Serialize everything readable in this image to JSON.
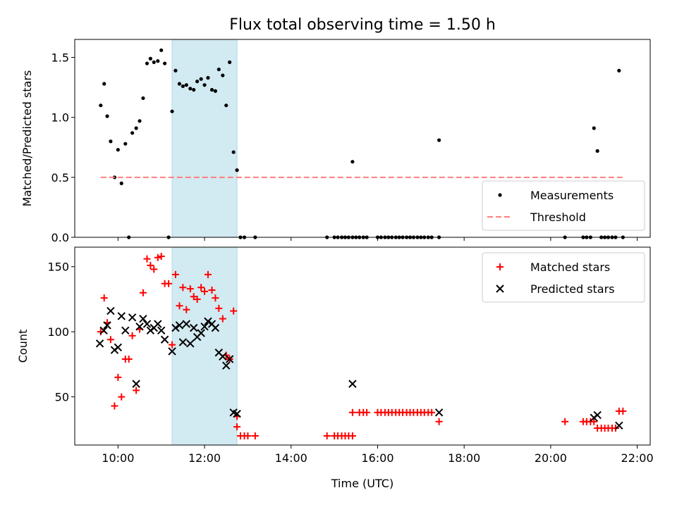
{
  "title": "Flux total observing time = 1.50 h",
  "colors": {
    "measurements": "#000000",
    "threshold": "#ff7f7f",
    "matched": "#ff0000",
    "predicted": "#000000",
    "span": "#add8e6"
  },
  "chart_data": [
    {
      "type": "scatter",
      "xlabel": "",
      "ylabel": "Matched/Predicted stars",
      "ylim": [
        0,
        1.65
      ],
      "xlim": [
        9.0,
        22.3
      ],
      "x_ticks": [
        10,
        12,
        14,
        16,
        18,
        20,
        22
      ],
      "x_tick_labels": [
        "",
        "",
        "",
        "",
        "",
        "",
        ""
      ],
      "y_ticks": [
        0,
        0.5,
        1.0,
        1.5
      ],
      "y_tick_labels": [
        "0.0",
        "0.5",
        "1.0",
        "1.5"
      ],
      "highlight_span": [
        11.25,
        12.75
      ],
      "legend_position": "bottom-right",
      "grid": false,
      "series": [
        {
          "name": "Measurements",
          "kind": "points",
          "points": [
            [
              9.6,
              1.1
            ],
            [
              9.68,
              1.28
            ],
            [
              9.75,
              1.01
            ],
            [
              9.83,
              0.8
            ],
            [
              9.92,
              0.5
            ],
            [
              10.0,
              0.73
            ],
            [
              10.08,
              0.45
            ],
            [
              10.17,
              0.78
            ],
            [
              10.25,
              0.0
            ],
            [
              10.33,
              0.87
            ],
            [
              10.42,
              0.91
            ],
            [
              10.5,
              0.97
            ],
            [
              10.58,
              1.16
            ],
            [
              10.67,
              1.45
            ],
            [
              10.75,
              1.49
            ],
            [
              10.83,
              1.46
            ],
            [
              10.92,
              1.47
            ],
            [
              11.0,
              1.56
            ],
            [
              11.08,
              1.45
            ],
            [
              11.17,
              0.0
            ],
            [
              11.25,
              1.05
            ],
            [
              11.33,
              1.39
            ],
            [
              11.42,
              1.28
            ],
            [
              11.5,
              1.26
            ],
            [
              11.58,
              1.27
            ],
            [
              11.67,
              1.24
            ],
            [
              11.75,
              1.23
            ],
            [
              11.83,
              1.3
            ],
            [
              11.92,
              1.32
            ],
            [
              12.0,
              1.27
            ],
            [
              12.08,
              1.33
            ],
            [
              12.17,
              1.23
            ],
            [
              12.25,
              1.22
            ],
            [
              12.33,
              1.4
            ],
            [
              12.42,
              1.35
            ],
            [
              12.5,
              1.1
            ],
            [
              12.58,
              1.46
            ],
            [
              12.67,
              0.71
            ],
            [
              12.75,
              0.56
            ],
            [
              12.83,
              0.0
            ],
            [
              12.92,
              0.0
            ],
            [
              13.17,
              0.0
            ],
            [
              14.83,
              0.0
            ],
            [
              15.0,
              0.0
            ],
            [
              15.08,
              0.0
            ],
            [
              15.17,
              0.0
            ],
            [
              15.25,
              0.0
            ],
            [
              15.33,
              0.0
            ],
            [
              15.42,
              0.0
            ],
            [
              15.5,
              0.0
            ],
            [
              15.58,
              0.0
            ],
            [
              15.67,
              0.0
            ],
            [
              15.75,
              0.0
            ],
            [
              15.42,
              0.63
            ],
            [
              16.0,
              0.0
            ],
            [
              16.08,
              0.0
            ],
            [
              16.17,
              0.0
            ],
            [
              16.25,
              0.0
            ],
            [
              16.33,
              0.0
            ],
            [
              16.42,
              0.0
            ],
            [
              16.5,
              0.0
            ],
            [
              16.58,
              0.0
            ],
            [
              16.67,
              0.0
            ],
            [
              16.75,
              0.0
            ],
            [
              16.83,
              0.0
            ],
            [
              16.92,
              0.0
            ],
            [
              17.0,
              0.0
            ],
            [
              17.08,
              0.0
            ],
            [
              17.17,
              0.0
            ],
            [
              17.25,
              0.0
            ],
            [
              17.42,
              0.0
            ],
            [
              17.42,
              0.81
            ],
            [
              20.33,
              0.0
            ],
            [
              20.75,
              0.0
            ],
            [
              20.83,
              0.0
            ],
            [
              20.92,
              0.0
            ],
            [
              21.0,
              0.91
            ],
            [
              21.08,
              0.72
            ],
            [
              21.17,
              0.0
            ],
            [
              21.25,
              0.0
            ],
            [
              21.33,
              0.0
            ],
            [
              21.42,
              0.0
            ],
            [
              21.5,
              0.0
            ],
            [
              21.58,
              1.39
            ],
            [
              21.67,
              0.0
            ]
          ]
        },
        {
          "name": "Threshold",
          "kind": "dashed-line",
          "x": [
            9.6,
            21.7
          ],
          "y": [
            0.5,
            0.5
          ]
        }
      ]
    },
    {
      "type": "scatter",
      "xlabel": "Time (UTC)",
      "ylabel": "Count",
      "ylim": [
        13,
        165
      ],
      "xlim": [
        9.0,
        22.3
      ],
      "x_ticks": [
        10,
        12,
        14,
        16,
        18,
        20,
        22
      ],
      "x_tick_labels": [
        "10:00",
        "12:00",
        "14:00",
        "16:00",
        "18:00",
        "20:00",
        "22:00"
      ],
      "y_ticks": [
        50,
        100,
        150
      ],
      "y_tick_labels": [
        "50",
        "100",
        "150"
      ],
      "highlight_span": [
        11.25,
        12.75
      ],
      "legend_position": "top-right",
      "grid": false,
      "series": [
        {
          "name": "Matched stars",
          "kind": "plus",
          "points": [
            [
              9.6,
              100
            ],
            [
              9.68,
              126
            ],
            [
              9.75,
              107
            ],
            [
              9.83,
              94
            ],
            [
              9.92,
              43
            ],
            [
              10.0,
              65
            ],
            [
              10.08,
              50
            ],
            [
              10.17,
              79
            ],
            [
              10.25,
              79
            ],
            [
              10.33,
              97
            ],
            [
              10.42,
              55
            ],
            [
              10.5,
              102
            ],
            [
              10.58,
              130
            ],
            [
              10.67,
              156
            ],
            [
              10.75,
              151
            ],
            [
              10.83,
              148
            ],
            [
              10.92,
              157
            ],
            [
              11.0,
              158
            ],
            [
              11.08,
              137
            ],
            [
              11.17,
              137
            ],
            [
              11.25,
              90
            ],
            [
              11.33,
              144
            ],
            [
              11.42,
              120
            ],
            [
              11.5,
              134
            ],
            [
              11.58,
              117
            ],
            [
              11.67,
              133
            ],
            [
              11.75,
              127
            ],
            [
              11.83,
              125
            ],
            [
              11.92,
              134
            ],
            [
              12.0,
              131
            ],
            [
              12.08,
              144
            ],
            [
              12.17,
              132
            ],
            [
              12.25,
              126
            ],
            [
              12.33,
              118
            ],
            [
              12.42,
              110
            ],
            [
              12.5,
              82
            ],
            [
              12.58,
              79
            ],
            [
              12.67,
              116
            ],
            [
              12.75,
              27
            ],
            [
              12.75,
              35
            ],
            [
              12.83,
              20
            ],
            [
              12.92,
              20
            ],
            [
              13.0,
              20
            ],
            [
              13.17,
              20
            ],
            [
              14.83,
              20
            ],
            [
              15.0,
              20
            ],
            [
              15.08,
              20
            ],
            [
              15.17,
              20
            ],
            [
              15.25,
              20
            ],
            [
              15.33,
              20
            ],
            [
              15.42,
              20
            ],
            [
              15.42,
              38
            ],
            [
              15.58,
              38
            ],
            [
              15.67,
              38
            ],
            [
              15.75,
              38
            ],
            [
              16.0,
              38
            ],
            [
              16.08,
              38
            ],
            [
              16.17,
              38
            ],
            [
              16.25,
              38
            ],
            [
              16.33,
              38
            ],
            [
              16.42,
              38
            ],
            [
              16.5,
              38
            ],
            [
              16.58,
              38
            ],
            [
              16.67,
              38
            ],
            [
              16.75,
              38
            ],
            [
              16.83,
              38
            ],
            [
              16.92,
              38
            ],
            [
              17.0,
              38
            ],
            [
              17.08,
              38
            ],
            [
              17.17,
              38
            ],
            [
              17.25,
              38
            ],
            [
              17.42,
              31
            ],
            [
              20.33,
              31
            ],
            [
              20.75,
              31
            ],
            [
              20.83,
              31
            ],
            [
              20.92,
              31
            ],
            [
              21.0,
              31
            ],
            [
              21.08,
              26
            ],
            [
              21.17,
              26
            ],
            [
              21.25,
              26
            ],
            [
              21.33,
              26
            ],
            [
              21.42,
              26
            ],
            [
              21.5,
              26
            ],
            [
              21.58,
              39
            ],
            [
              21.67,
              39
            ]
          ]
        },
        {
          "name": "Predicted stars",
          "kind": "x",
          "points": [
            [
              9.58,
              91
            ],
            [
              9.67,
              101
            ],
            [
              9.75,
              105
            ],
            [
              9.83,
              116
            ],
            [
              9.92,
              86
            ],
            [
              10.0,
              88
            ],
            [
              10.08,
              112
            ],
            [
              10.17,
              101
            ],
            [
              10.33,
              111
            ],
            [
              10.42,
              60
            ],
            [
              10.5,
              104
            ],
            [
              10.58,
              110
            ],
            [
              10.67,
              106
            ],
            [
              10.75,
              101
            ],
            [
              10.83,
              103
            ],
            [
              10.92,
              106
            ],
            [
              11.0,
              101
            ],
            [
              11.08,
              94
            ],
            [
              11.25,
              85
            ],
            [
              11.33,
              103
            ],
            [
              11.42,
              105
            ],
            [
              11.5,
              92
            ],
            [
              11.58,
              106
            ],
            [
              11.67,
              91
            ],
            [
              11.75,
              103
            ],
            [
              11.83,
              96
            ],
            [
              11.92,
              99
            ],
            [
              12.0,
              104
            ],
            [
              12.08,
              108
            ],
            [
              12.17,
              106
            ],
            [
              12.25,
              103
            ],
            [
              12.33,
              84
            ],
            [
              12.42,
              81
            ],
            [
              12.5,
              74
            ],
            [
              12.58,
              79
            ],
            [
              12.67,
              38
            ],
            [
              12.75,
              37
            ],
            [
              15.42,
              60
            ],
            [
              17.42,
              38
            ],
            [
              21.0,
              34
            ],
            [
              21.08,
              36
            ],
            [
              21.58,
              28
            ]
          ]
        }
      ]
    }
  ]
}
